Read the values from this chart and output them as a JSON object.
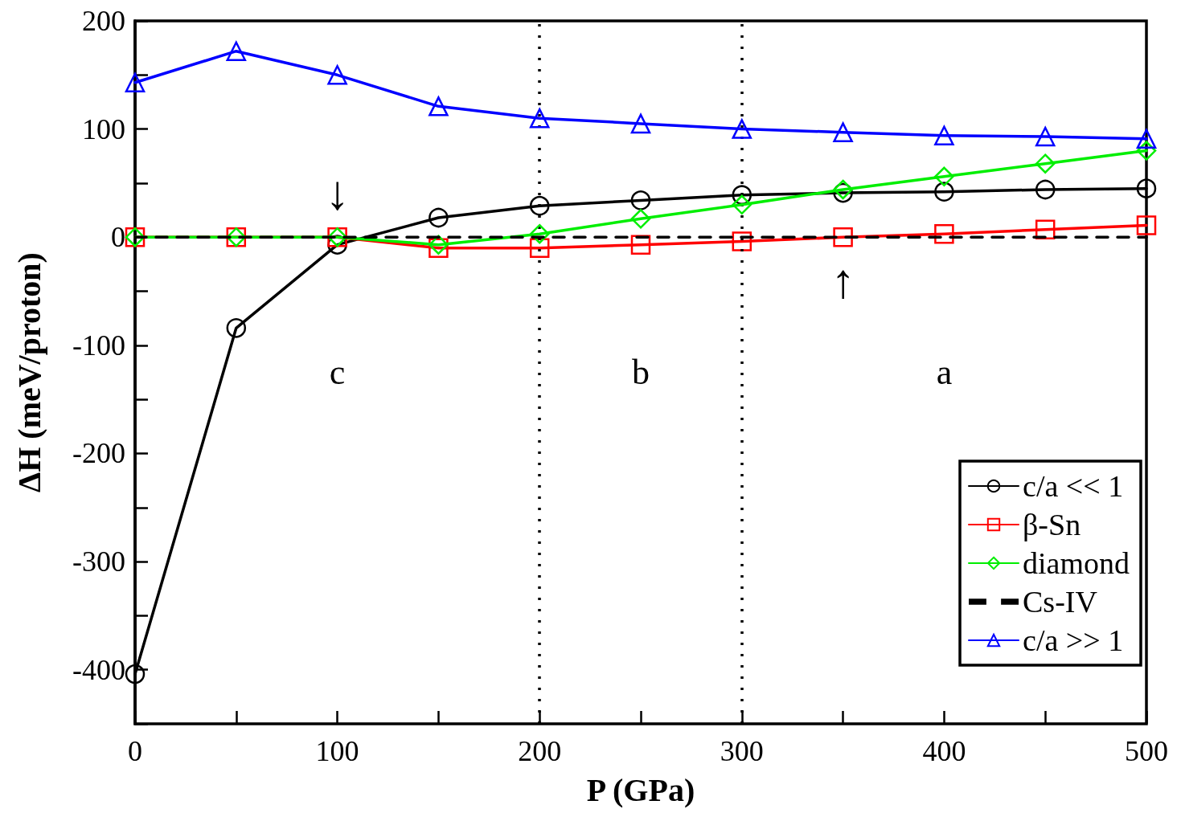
{
  "chart_data": {
    "type": "line",
    "xlabel": "P (GPa)",
    "ylabel": "ΔH (meV/proton)",
    "x": [
      0,
      50,
      100,
      150,
      200,
      250,
      300,
      350,
      400,
      450,
      500
    ],
    "series": [
      {
        "name": "c/a << 1",
        "color": "#000000",
        "marker": "circle",
        "line_style": "solid",
        "values": [
          -404,
          -84,
          -7,
          18,
          29,
          34,
          39,
          41,
          42,
          44,
          45
        ]
      },
      {
        "name": "β-Sn",
        "color": "#ff0000",
        "marker": "square",
        "line_style": "solid",
        "values": [
          0,
          0,
          0,
          -10,
          -10,
          -7,
          -4,
          0,
          3,
          7,
          11
        ]
      },
      {
        "name": "diamond",
        "color": "#00ee00",
        "marker": "diamond",
        "line_style": "solid",
        "values": [
          0,
          0,
          0,
          -7,
          3,
          17,
          30,
          44,
          56,
          68,
          80
        ]
      },
      {
        "name": "Cs-IV",
        "color": "#000000",
        "marker": "none",
        "line_style": "dashed",
        "x": [
          0,
          500
        ],
        "values": [
          0,
          0
        ]
      },
      {
        "name": "c/a >> 1",
        "color": "#0000ff",
        "marker": "triangle",
        "line_style": "solid",
        "values": [
          143,
          172,
          150,
          121,
          110,
          105,
          100,
          97,
          94,
          93,
          91
        ]
      }
    ],
    "xlim": [
      0,
      500
    ],
    "xticks": [
      0,
      {
        "value": 50,
        "label": null
      },
      100,
      {
        "value": 150,
        "label": null
      },
      200,
      {
        "value": 250,
        "label": null
      },
      300,
      {
        "value": 350,
        "label": null
      },
      400,
      {
        "value": 450,
        "label": null
      },
      500
    ],
    "ylim": [
      -450,
      200
    ],
    "yticks": [
      {
        "value": -450,
        "label": null
      },
      -400,
      {
        "value": -350,
        "label": null
      },
      -300,
      {
        "value": -250,
        "label": null
      },
      -200,
      {
        "value": -150,
        "label": null
      },
      -100,
      {
        "value": -50,
        "label": null
      },
      0,
      {
        "value": 50,
        "label": null
      },
      100,
      {
        "value": 150,
        "label": null
      },
      200
    ],
    "ref_lines": [
      {
        "axis": "x",
        "value": 200,
        "color": "#000000",
        "line_style": "dotted"
      },
      {
        "axis": "x",
        "value": 300,
        "color": "#000000",
        "line_style": "dotted"
      }
    ],
    "annotations": [
      "c",
      "b",
      "a",
      {
        "text": "↓",
        "x": 100,
        "y": 0
      },
      {
        "text": "↑",
        "x": 350,
        "y": 0
      }
    ],
    "grid": false,
    "legend": "bottom right"
  }
}
